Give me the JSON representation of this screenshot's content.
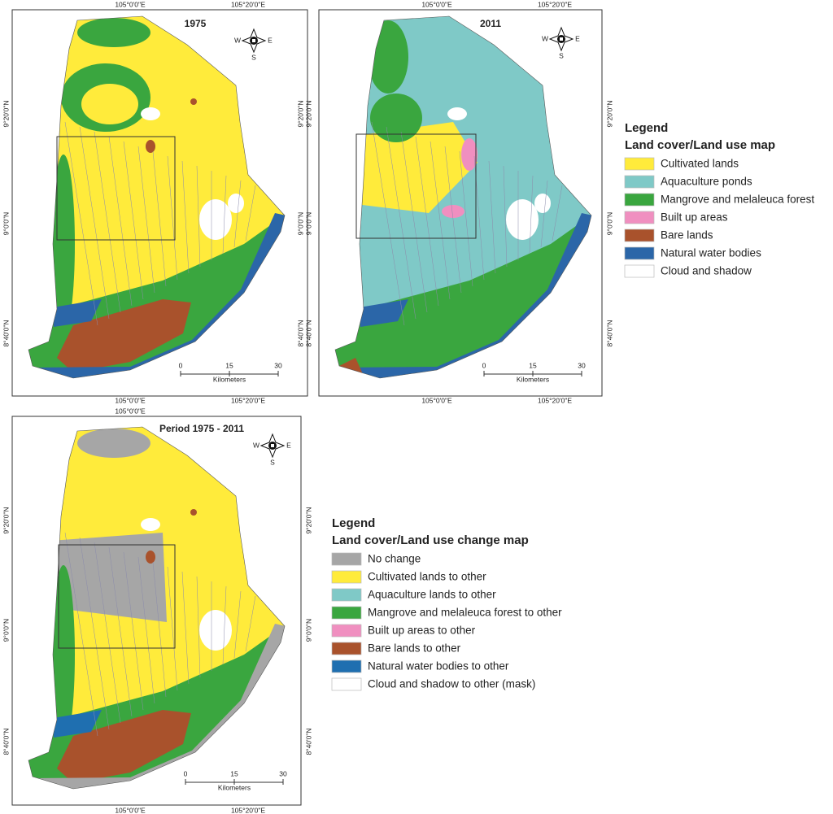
{
  "maps": [
    {
      "title": "1975",
      "top_labels": [
        "105°0'0\"E",
        "105°20'0\"E"
      ],
      "bottom_labels": [
        "105°0'0\"E",
        "105°20'0\"E"
      ],
      "left_labels": [
        "9°20'0\"N",
        "9°0'0\"N",
        "8°40'0\"N"
      ],
      "right_labels": [
        "9°20'0\"N",
        "9°0'0\"N",
        "8°40'0\"N"
      ],
      "compass": [
        "W",
        "E",
        "S"
      ],
      "scale": {
        "ticks": [
          0,
          15,
          30
        ],
        "unit": "Kilometers"
      }
    },
    {
      "title": "2011",
      "top_labels": [
        "105°0'0\"E",
        "105°20'0\"E"
      ],
      "bottom_labels": [
        "105°0'0\"E",
        "105°20'0\"E"
      ],
      "left_labels": [
        "9°20'0\"N",
        "9°0'0\"N",
        "8°40'0\"N"
      ],
      "right_labels": [
        "9°20'0\"N",
        "9°0'0\"N",
        "8°40'0\"N"
      ],
      "compass": [
        "W",
        "E",
        "S"
      ],
      "scale": {
        "ticks": [
          0,
          15,
          30
        ],
        "unit": "Kilometers"
      }
    },
    {
      "title": "Period 1975 - 2011",
      "top_labels": [
        "105°0'0\"E"
      ],
      "bottom_labels": [
        "105°0'0\"E",
        "105°20'0\"E"
      ],
      "left_labels": [
        "9°20'0\"N",
        "9°0'0\"N",
        "8°40'0\"N"
      ],
      "right_labels": [
        "9°20'0\"N",
        "9°0'0\"N",
        "8°40'0\"N"
      ],
      "compass": [
        "W",
        "E",
        "S"
      ],
      "scale": {
        "ticks": [
          0,
          15,
          30
        ],
        "unit": "Kilometers"
      }
    }
  ],
  "legends": [
    {
      "heading": "Legend",
      "title": "Land cover/Land use map",
      "items": [
        {
          "label": "Cultivated lands",
          "color": "#ffeb3b"
        },
        {
          "label": "Aquaculture ponds",
          "color": "#7fc9c7"
        },
        {
          "label": "Mangrove and melaleuca forest",
          "color": "#3aa63f"
        },
        {
          "label": "Built up areas",
          "color": "#f08fc0"
        },
        {
          "label": "Bare lands",
          "color": "#a9522c"
        },
        {
          "label": "Natural water bodies",
          "color": "#2b66a8"
        },
        {
          "label": "Cloud and shadow",
          "color": "#ffffff"
        }
      ]
    },
    {
      "heading": "Legend",
      "title": "Land cover/Land use change map",
      "items": [
        {
          "label": "No change",
          "color": "#a6a6a6"
        },
        {
          "label": "Cultivated lands to other",
          "color": "#ffeb3b"
        },
        {
          "label": "Aquaculture lands to other",
          "color": "#7fc9c7"
        },
        {
          "label": "Mangrove and melaleuca forest to other",
          "color": "#3aa63f"
        },
        {
          "label": "Built up areas to other",
          "color": "#f08fc0"
        },
        {
          "label": "Bare lands to other",
          "color": "#a9522c"
        },
        {
          "label": "Natural water bodies to other",
          "color": "#1f6fb0"
        },
        {
          "label": "Cloud and shadow to other (mask)",
          "color": "#ffffff"
        }
      ]
    }
  ]
}
